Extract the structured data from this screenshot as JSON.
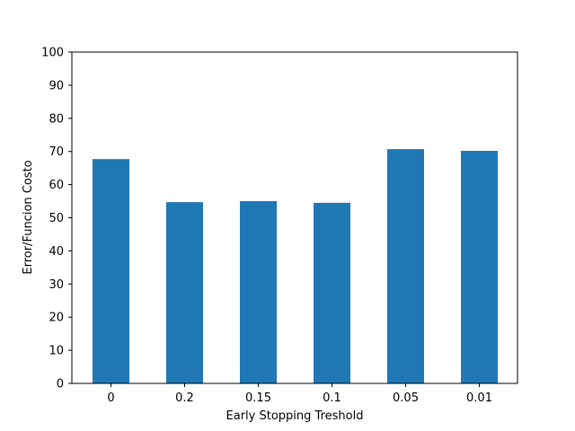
{
  "chart_data": {
    "type": "bar",
    "title": "",
    "xlabel": "Early Stopping Treshold",
    "ylabel": "Error/Funcion Costo",
    "categories": [
      "0",
      "0.2",
      "0.15",
      "0.1",
      "0.05",
      "0.01"
    ],
    "values": [
      67.7,
      54.7,
      55.0,
      54.5,
      70.7,
      70.2
    ],
    "ylim": [
      0,
      100
    ],
    "yticks": [
      0,
      10,
      20,
      30,
      40,
      50,
      60,
      70,
      80,
      90,
      100
    ],
    "bar_color": "#1f77b4",
    "grid": false,
    "legend": "none"
  }
}
